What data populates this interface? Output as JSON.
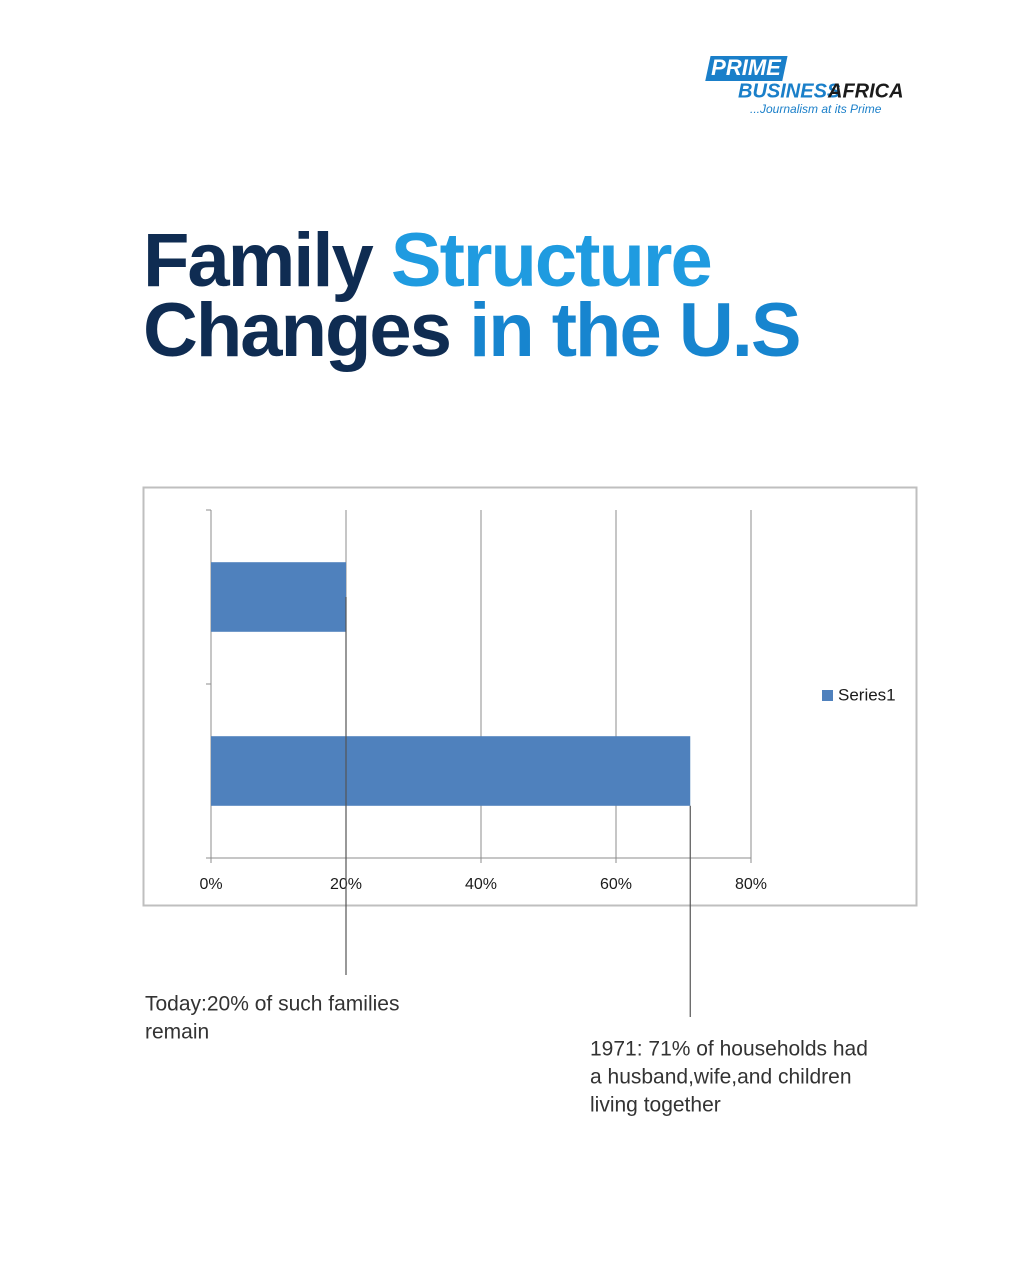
{
  "logo": {
    "top": "PRIME",
    "middle": "BUSINESS",
    "right": "AFRICA",
    "tagline": "...Journalism at its Prime"
  },
  "chart_data": {
    "type": "bar",
    "orientation": "horizontal",
    "title_segments": [
      {
        "text": "Family",
        "color": "#0f2c52"
      },
      {
        "text": "Structure",
        "color": "#1f9be0"
      },
      {
        "text": "Changes",
        "color": "#0f2c52"
      },
      {
        "text": "in the U.S",
        "color": "#1785cf"
      }
    ],
    "categories": [
      null,
      null
    ],
    "series": [
      {
        "name": "Series1",
        "color": "#4f81bd",
        "values": [
          71,
          20
        ]
      }
    ],
    "xlim": [
      0,
      80
    ],
    "xticks": [
      {
        "value": 0,
        "label": "0%"
      },
      {
        "value": 20,
        "label": "20%"
      },
      {
        "value": 40,
        "label": "40%"
      },
      {
        "value": 60,
        "label": "60%"
      },
      {
        "value": 80,
        "label": "80%"
      }
    ],
    "grid": true,
    "legend": "right",
    "annotations": [
      {
        "lines": [
          "Today:20% of such families",
          "remain"
        ]
      },
      {
        "lines": [
          "1971: 71% of households had",
          "a husband,wife,and children",
          "living together"
        ]
      }
    ]
  }
}
